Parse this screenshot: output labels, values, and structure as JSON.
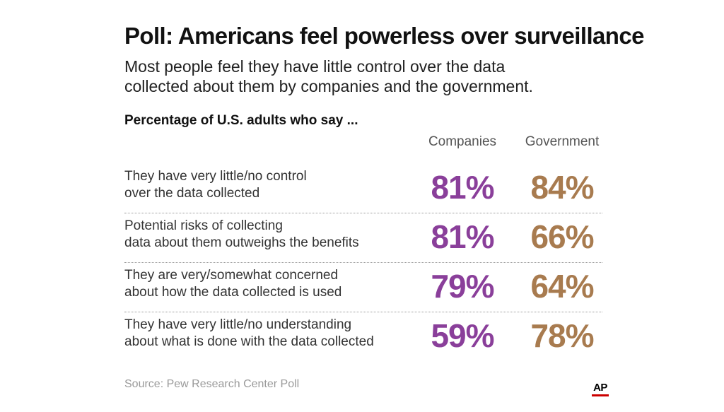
{
  "header": {
    "title": "Poll: Americans feel powerless over surveillance",
    "subtitle_line1": "Most people feel they have little control over the data",
    "subtitle_line2": "collected about them by companies and the government.",
    "qualifier": "Percentage of U.S. adults who say ..."
  },
  "columns": {
    "companies": "Companies",
    "government": "Government"
  },
  "colors": {
    "companies": "#8a3f9a",
    "government": "#a87b4f"
  },
  "chart_data": {
    "type": "table",
    "title": "Poll: Americans feel powerless over surveillance",
    "subtitle": "Most people feel they have little control over the data collected about them by companies and the government.",
    "columns": [
      "Companies",
      "Government"
    ],
    "rows": [
      {
        "label_line1": "They have very little/no control",
        "label_line2": "over the data collected",
        "companies": "81%",
        "government": "84%"
      },
      {
        "label_line1": "Potential risks of collecting",
        "label_line2": "data about them outweighs the benefits",
        "companies": "81%",
        "government": "66%"
      },
      {
        "label_line1": "They are very/somewhat concerned",
        "label_line2": "about how the data collected is used",
        "companies": "79%",
        "government": "64%"
      },
      {
        "label_line1": "They have very little/no understanding",
        "label_line2": "about what is done with the data collected",
        "companies": "59%",
        "government": "78%"
      }
    ]
  },
  "footer": {
    "source": "Source: Pew Research Center Poll",
    "logo_text": "AP"
  }
}
